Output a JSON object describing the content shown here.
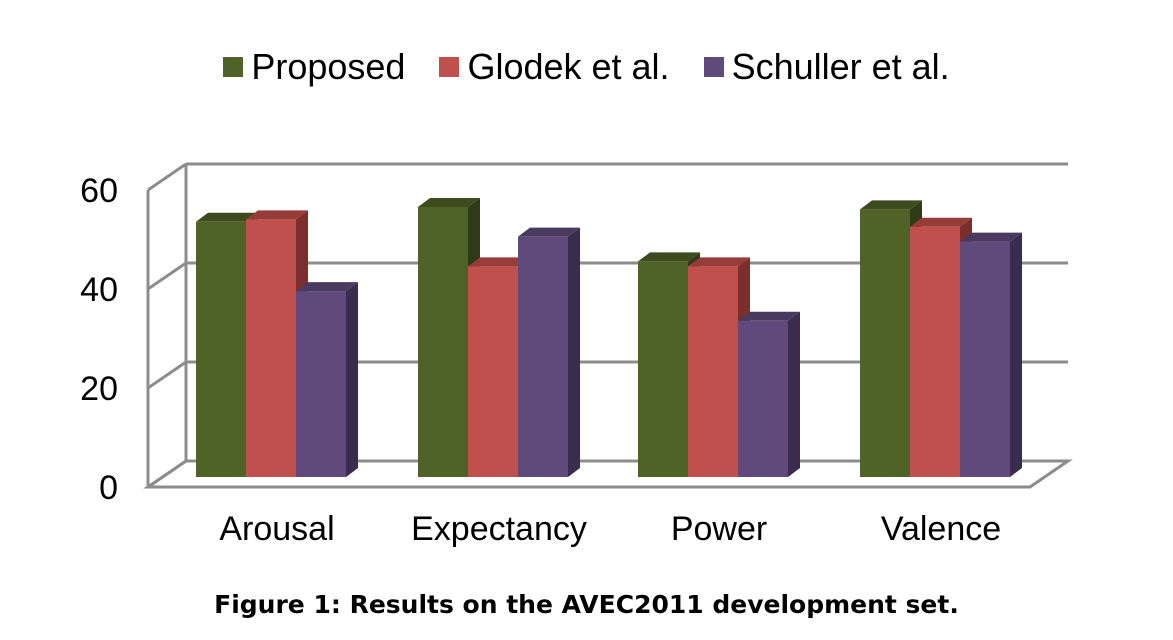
{
  "caption": "Figure 1: Results on the AVEC2011 development set.",
  "chart_data": {
    "type": "bar",
    "categories": [
      "Arousal",
      "Expectancy",
      "Power",
      "Valence"
    ],
    "series": [
      {
        "name": "Proposed",
        "values": [
          56,
          59,
          48,
          58.5
        ],
        "color": "#4f6228",
        "side": "#2f3a18",
        "top": "#3d4c1f"
      },
      {
        "name": "Glodek et al.",
        "values": [
          56.5,
          47,
          47,
          55
        ],
        "color": "#c0504d",
        "side": "#7a2f2d",
        "top": "#963c39"
      },
      {
        "name": "Schuller et al.",
        "values": [
          42,
          53,
          36,
          52
        ],
        "color": "#604a7b",
        "side": "#3a2c4c",
        "top": "#4b3a60"
      }
    ],
    "yticks": [
      0,
      20,
      40,
      60
    ],
    "ylim": [
      0,
      60
    ],
    "grid": true,
    "legend_position": "top"
  }
}
